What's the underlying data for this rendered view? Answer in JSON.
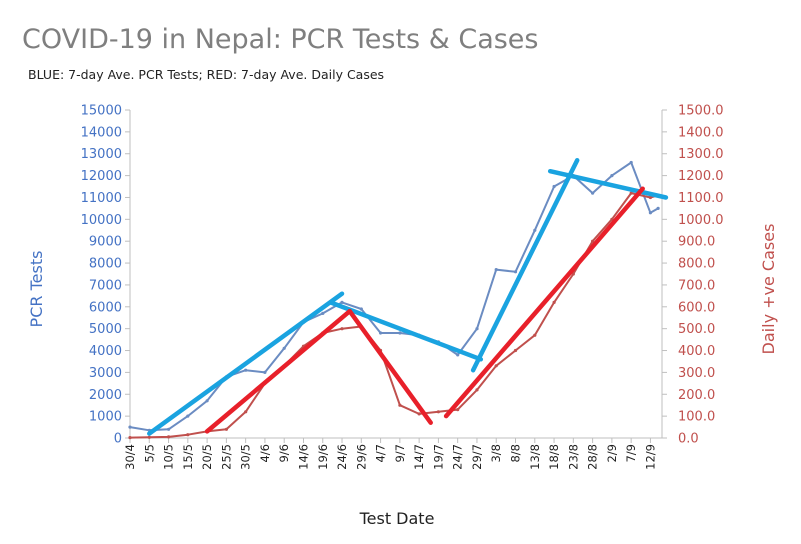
{
  "chart_data": {
    "type": "line",
    "title": "COVID-19 in Nepal: PCR Tests & Cases",
    "subtitle": "BLUE: 7-day Ave. PCR Tests; RED: 7-day Ave. Daily Cases",
    "xlabel": "Test Date",
    "ylabel_left": "PCR Tests",
    "ylabel_right": "Daily +ve Cases",
    "ylim_left": [
      0,
      15000
    ],
    "ylim_right": [
      0,
      1500
    ],
    "yticks_left": [
      "0",
      "1000",
      "2000",
      "3000",
      "4000",
      "5000",
      "6000",
      "7000",
      "8000",
      "9000",
      "10000",
      "11000",
      "12000",
      "13000",
      "14000",
      "15000"
    ],
    "yticks_right": [
      "0.0",
      "100.0",
      "200.0",
      "300.0",
      "400.0",
      "500.0",
      "600.0",
      "700.0",
      "800.0",
      "900.0",
      "1000.0",
      "1100.0",
      "1200.0",
      "1300.0",
      "1400.0",
      "1500.0"
    ],
    "x_start": "30/4",
    "x_end": "15/9",
    "categories": [
      "30/4",
      "5/5",
      "10/5",
      "15/5",
      "20/5",
      "25/5",
      "30/5",
      "4/6",
      "9/6",
      "14/6",
      "19/6",
      "24/6",
      "29/6",
      "4/7",
      "9/7",
      "14/7",
      "19/7",
      "24/7",
      "29/7",
      "3/8",
      "8/8",
      "13/8",
      "18/8",
      "23/8",
      "28/8",
      "2/9",
      "7/9",
      "12/9"
    ],
    "grid": false,
    "colors": {
      "tests": "#6b8cc2",
      "cases": "#c0504d",
      "tests_trend": "#1aa3e0",
      "cases_trend": "#e8202a",
      "title": "#7f7f7f"
    },
    "series": [
      {
        "axis": "left",
        "x": [
          "30/4",
          "5/5",
          "10/5",
          "15/5",
          "20/5",
          "25/5",
          "30/5",
          "4/6",
          "9/6",
          "14/6",
          "19/6",
          "24/6",
          "29/6",
          "4/7",
          "9/7",
          "14/7",
          "19/7",
          "24/7",
          "29/7",
          "3/8",
          "8/8",
          "13/8",
          "18/8",
          "23/8",
          "28/8",
          "2/9",
          "7/9",
          "12/9",
          "14/9"
        ],
        "values": [
          500,
          350,
          400,
          1000,
          1700,
          2800,
          3100,
          3000,
          4100,
          5300,
          5700,
          6200,
          5900,
          4800,
          4800,
          4700,
          4400,
          3800,
          5000,
          7700,
          7600,
          9500,
          11500,
          12000,
          11200,
          12000,
          12600,
          10300,
          10500
        ]
      },
      {
        "axis": "right",
        "x": [
          "30/4",
          "5/5",
          "10/5",
          "15/5",
          "20/5",
          "25/5",
          "30/5",
          "4/6",
          "9/6",
          "14/6",
          "19/6",
          "24/6",
          "29/6",
          "4/7",
          "9/7",
          "14/7",
          "19/7",
          "24/7",
          "29/7",
          "3/8",
          "8/8",
          "13/8",
          "18/8",
          "23/8",
          "28/8",
          "2/9",
          "7/9",
          "12/9",
          "14/9"
        ],
        "values": [
          2,
          3,
          5,
          15,
          30,
          40,
          120,
          250,
          330,
          420,
          480,
          500,
          510,
          400,
          150,
          110,
          120,
          130,
          220,
          330,
          400,
          470,
          620,
          750,
          900,
          1000,
          1120,
          1100,
          1110
        ]
      }
    ],
    "trend_lines": [
      {
        "axis": "left",
        "x0": "5/5",
        "y0": 200,
        "x1": "24/6",
        "y1": 6600
      },
      {
        "axis": "left",
        "x0": "21/6",
        "y0": 6200,
        "x1": "30/7",
        "y1": 3600
      },
      {
        "axis": "left",
        "x0": "28/7",
        "y0": 3100,
        "x1": "24/8",
        "y1": 12700
      },
      {
        "axis": "left",
        "x0": "17/8",
        "y0": 12200,
        "x1": "16/9",
        "y1": 11000
      },
      {
        "axis": "right",
        "x0": "20/5",
        "y0": 30,
        "x1": "26/6",
        "y1": 580
      },
      {
        "axis": "right",
        "x0": "26/6",
        "y0": 580,
        "x1": "17/7",
        "y1": 70
      },
      {
        "axis": "right",
        "x0": "21/7",
        "y0": 100,
        "x1": "10/9",
        "y1": 1140
      }
    ]
  }
}
